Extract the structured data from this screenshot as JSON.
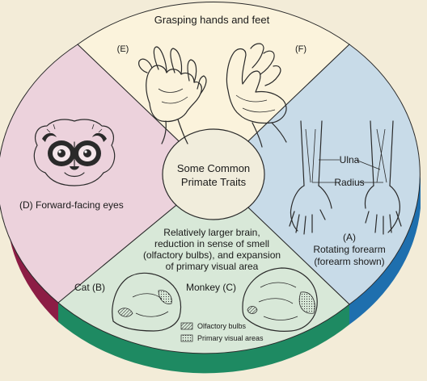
{
  "colors": {
    "background": "#f3ecd8",
    "sector_top": "#fbf3dc",
    "sector_right": "#c8dbe8",
    "sector_bottom": "#d8e8d8",
    "sector_left": "#ecd2dc",
    "rim_left": "#8c1d45",
    "rim_bottom": "#1e8a62",
    "rim_right": "#1e6fae"
  },
  "center": {
    "line1": "Some Common",
    "line2": "Primate Traits"
  },
  "sectors": {
    "top": {
      "title": "Grasping hands and feet",
      "label_e": "(E)",
      "label_f": "(F)"
    },
    "right": {
      "ulna": "Ulna",
      "radius": "Radius",
      "caption_letter": "(A)",
      "caption_line1": "Rotating forearm",
      "caption_line2": "(forearm shown)"
    },
    "left": {
      "caption": "(D)  Forward-facing eyes"
    },
    "bottom": {
      "line1": "Relatively larger brain,",
      "line2": "reduction in sense of smell",
      "line3": "(olfactory bulbs), and expansion",
      "line4": "of primary visual area",
      "cat": "Cat (B)",
      "monkey": "Monkey (C)",
      "legend_olfactory": "Olfactory bulbs",
      "legend_visual": "Primary visual areas"
    }
  }
}
